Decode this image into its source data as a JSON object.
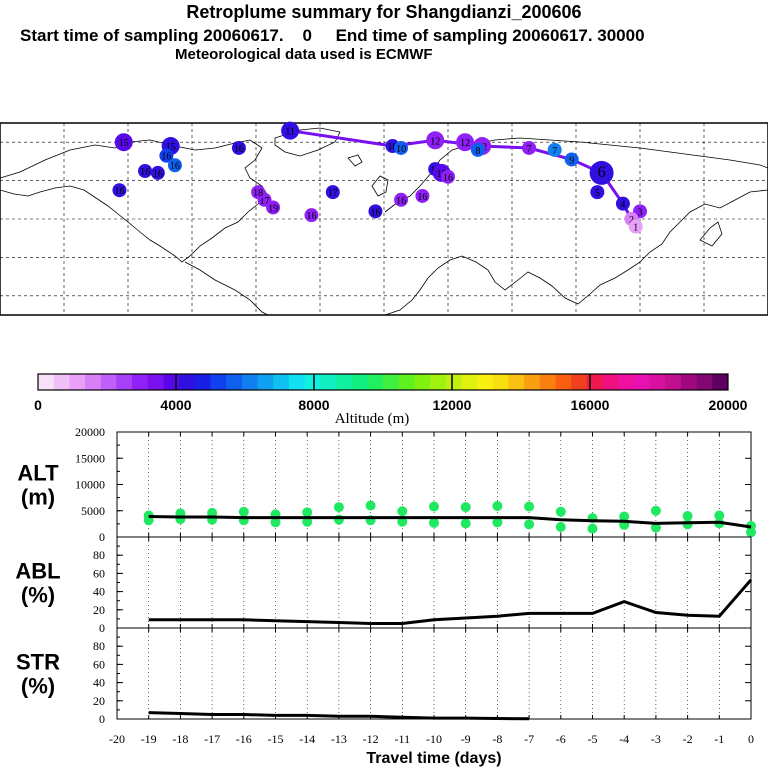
{
  "header": {
    "title": "Retroplume summary for Shangdianzi_200606",
    "line2": "Start time of sampling 20060617.    0     End time of sampling 20060617. 30000",
    "line3": "Meteorological data used is ECMWF"
  },
  "colorbar": {
    "colors": [
      "#f8e0f8",
      "#f0c0f8",
      "#e8a0f8",
      "#d880f8",
      "#c060f8",
      "#a840f8",
      "#9020f8",
      "#7810f0",
      "#5808e8",
      "#3010e0",
      "#1820e8",
      "#1040f0",
      "#1060f0",
      "#1080f0",
      "#10a0f0",
      "#10c0f0",
      "#10e0f0",
      "#10f0e0",
      "#10f0c0",
      "#10f0a0",
      "#10f080",
      "#20f060",
      "#40f040",
      "#60f020",
      "#80f010",
      "#a0f010",
      "#c0f010",
      "#e0f010",
      "#f8f010",
      "#f8e010",
      "#f8c010",
      "#f8a010",
      "#f88010",
      "#f86010",
      "#f04020",
      "#f01850",
      "#f01080",
      "#f010a0",
      "#e810b0",
      "#d810a0",
      "#c01090",
      "#a00880",
      "#800870",
      "#600060"
    ],
    "tick_labels": [
      "0",
      "4000",
      "8000",
      "12000",
      "16000",
      "20000"
    ],
    "label": "Altitude (m)"
  },
  "chart_data": [
    {
      "type": "line",
      "panel": "ALT",
      "ylabel": "ALT\n(m)",
      "ylabel_lines": [
        "ALT",
        "(m)"
      ],
      "ylim": [
        0,
        20000
      ],
      "yticks": [
        "0",
        "5000",
        "10000",
        "15000",
        "20000"
      ],
      "x": [
        -19,
        -18,
        -17,
        -16,
        -15,
        -14,
        -13,
        -12,
        -11,
        -10,
        -9,
        -8,
        -7,
        -6,
        -5,
        -4,
        -3,
        -2,
        -1,
        0
      ],
      "values": [
        3900,
        3800,
        3800,
        3700,
        3700,
        3700,
        3700,
        3700,
        3700,
        3700,
        3700,
        3700,
        3700,
        3300,
        3100,
        3000,
        2600,
        2700,
        2800,
        1900
      ],
      "scatter_points": [
        [
          -19,
          3200
        ],
        [
          -19,
          4100
        ],
        [
          -18,
          3400
        ],
        [
          -18,
          4500
        ],
        [
          -17,
          3300
        ],
        [
          -17,
          4600
        ],
        [
          -16,
          3200
        ],
        [
          -16,
          4800
        ],
        [
          -15,
          2800
        ],
        [
          -15,
          4300
        ],
        [
          -14,
          2900
        ],
        [
          -14,
          4700
        ],
        [
          -13,
          3300
        ],
        [
          -13,
          5700
        ],
        [
          -12,
          3200
        ],
        [
          -12,
          6000
        ],
        [
          -11,
          2900
        ],
        [
          -11,
          4900
        ],
        [
          -10,
          2700
        ],
        [
          -10,
          5800
        ],
        [
          -9,
          2600
        ],
        [
          -9,
          5700
        ],
        [
          -8,
          2800
        ],
        [
          -8,
          5900
        ],
        [
          -7,
          2400
        ],
        [
          -7,
          5800
        ],
        [
          -6,
          1900
        ],
        [
          -6,
          4800
        ],
        [
          -5,
          1600
        ],
        [
          -5,
          3600
        ],
        [
          -4,
          2300
        ],
        [
          -4,
          3900
        ],
        [
          -3,
          1800
        ],
        [
          -3,
          5000
        ],
        [
          -2,
          2400
        ],
        [
          -2,
          4000
        ],
        [
          -1,
          2600
        ],
        [
          -1,
          4100
        ],
        [
          0,
          900
        ],
        [
          0,
          2100
        ]
      ]
    },
    {
      "type": "line",
      "panel": "ABL",
      "ylabel": "ABL\n(%)",
      "ylabel_lines": [
        "ABL",
        "(%)"
      ],
      "ylim": [
        0,
        100
      ],
      "yticks": [
        "0",
        "20",
        "40",
        "60",
        "80"
      ],
      "x": [
        -19,
        -18,
        -17,
        -16,
        -15,
        -14,
        -13,
        -12,
        -11,
        -10,
        -9,
        -8,
        -7,
        -6,
        -5,
        -4,
        -3,
        -2,
        -1,
        0
      ],
      "values": [
        9,
        9,
        9,
        9,
        8,
        7,
        6,
        5,
        5,
        9,
        11,
        13,
        16,
        16,
        16,
        29,
        17,
        14,
        13,
        53
      ]
    },
    {
      "type": "line",
      "panel": "STR",
      "ylabel": "STR\n(%)",
      "ylabel_lines": [
        "STR",
        "(%)"
      ],
      "ylim": [
        0,
        100
      ],
      "yticks": [
        "0",
        "20",
        "40",
        "60",
        "80"
      ],
      "x": [
        -19,
        -18,
        -17,
        -16,
        -15,
        -14,
        -13,
        -12,
        -11,
        -10,
        -9,
        -8,
        -7
      ],
      "values": [
        7,
        6,
        5,
        5,
        4,
        4,
        3,
        3,
        2,
        1,
        1,
        0.5,
        0.3
      ],
      "xlabel": "Travel time (days)",
      "xticks": [
        "-20",
        "-19",
        "-18",
        "-17",
        "-16",
        "-15",
        "-14",
        "-13",
        "-12",
        "-11",
        "-10",
        "-9",
        "-8",
        "-7",
        "-6",
        "-5",
        "-4",
        "-3",
        "-2",
        "-1",
        "0"
      ]
    }
  ],
  "map": {
    "plume_markers": [
      {
        "label": "11",
        "lon": -44,
        "lat": 86,
        "color": "#3010e0"
      },
      {
        "label": "15",
        "lon": -122,
        "lat": 80,
        "color": "#5808e8"
      },
      {
        "label": "15",
        "lon": -100,
        "lat": 78,
        "color": "#3010e0"
      },
      {
        "label": "16",
        "lon": -68,
        "lat": 77,
        "color": "#3010e0"
      },
      {
        "label": "16",
        "lon": -102,
        "lat": 73,
        "color": "#1040f0"
      },
      {
        "label": "16",
        "lon": -98,
        "lat": 68,
        "color": "#1060f0"
      },
      {
        "label": "16",
        "lon": -112,
        "lat": 65,
        "color": "#3010e0"
      },
      {
        "label": "16",
        "lon": -106,
        "lat": 64,
        "color": "#3010e0"
      },
      {
        "label": "16",
        "lon": -124,
        "lat": 55,
        "color": "#3010e0"
      },
      {
        "label": "10",
        "lon": 4,
        "lat": 78,
        "color": "#3010e0"
      },
      {
        "label": "10",
        "lon": 8,
        "lat": 77,
        "color": "#1060f0"
      },
      {
        "label": "12",
        "lon": 24,
        "lat": 81,
        "color": "#9020f8"
      },
      {
        "label": "12",
        "lon": 38,
        "lat": 80,
        "color": "#9020f8"
      },
      {
        "label": "12",
        "lon": 46,
        "lat": 78,
        "color": "#9020f8"
      },
      {
        "label": "8",
        "lon": 44,
        "lat": 76,
        "color": "#1060f0"
      },
      {
        "label": "14",
        "lon": 24,
        "lat": 66,
        "color": "#3010e0"
      },
      {
        "label": "15",
        "lon": 27,
        "lat": 64,
        "color": "#5808e8"
      },
      {
        "label": "16",
        "lon": 30,
        "lat": 62,
        "color": "#9020f8"
      },
      {
        "label": "16",
        "lon": 18,
        "lat": 52,
        "color": "#9020f8"
      },
      {
        "label": "16",
        "lon": 8,
        "lat": 50,
        "color": "#9020f8"
      },
      {
        "label": "17",
        "lon": -24,
        "lat": 54,
        "color": "#3010e0"
      },
      {
        "label": "16",
        "lon": -34,
        "lat": 42,
        "color": "#9020f8"
      },
      {
        "label": "16",
        "lon": -4,
        "lat": 44,
        "color": "#3010e0"
      },
      {
        "label": "17",
        "lon": -56,
        "lat": 50,
        "color": "#9020f8"
      },
      {
        "label": "18",
        "lon": -59,
        "lat": 54,
        "color": "#9020f8"
      },
      {
        "label": "19",
        "lon": -52,
        "lat": 46,
        "color": "#9020f8"
      },
      {
        "label": "7",
        "lon": 68,
        "lat": 77,
        "color": "#9020f8"
      },
      {
        "label": "7",
        "lon": 80,
        "lat": 76,
        "color": "#1080f0"
      },
      {
        "label": "9",
        "lon": 88,
        "lat": 71,
        "color": "#1060f0"
      },
      {
        "label": "6",
        "lon": 102,
        "lat": 64,
        "color": "#3010e0"
      },
      {
        "label": "5",
        "lon": 100,
        "lat": 54,
        "color": "#3010e0"
      },
      {
        "label": "4",
        "lon": 112,
        "lat": 48,
        "color": "#3010e0"
      },
      {
        "label": "3",
        "lon": 120,
        "lat": 44,
        "color": "#9020f8"
      },
      {
        "label": "2",
        "lon": 116,
        "lat": 40,
        "color": "#d880f8"
      },
      {
        "label": "1",
        "lon": 118,
        "lat": 36,
        "color": "#e8a0f8"
      }
    ]
  }
}
